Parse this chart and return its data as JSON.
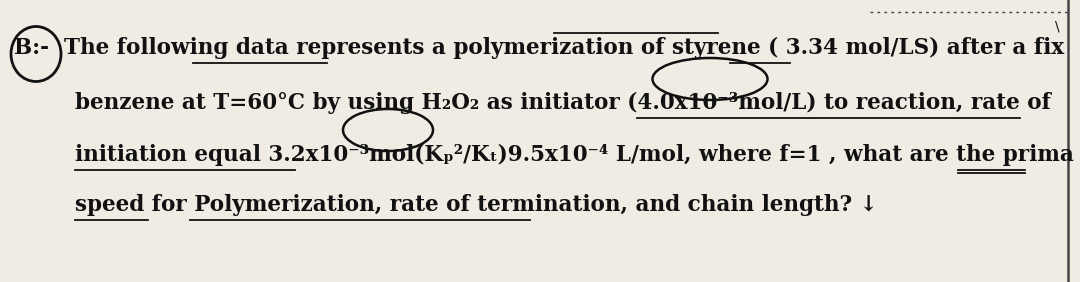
{
  "background_color": "#f0ece4",
  "text_color": "#111111",
  "line1": "B:-  The following data represents a polymerization of styrene ( 3.34 mol/LS) after a fix",
  "line2": "benzene at T=60°C by using H₂O₂ as initiator (4.0x10⁻³mol/L) to reaction, rate of",
  "line3": "initiation equal 3.2x10⁻³mol(Kₚ²/Kₜ)9.5x10⁻⁴ L/mol, where f=1 , what are the prima",
  "line4": "speed for Polymerization, rate of termination, and chain length? ↓",
  "font_size": 15.5,
  "fig_width": 10.8,
  "fig_height": 2.82,
  "dpi": 100
}
